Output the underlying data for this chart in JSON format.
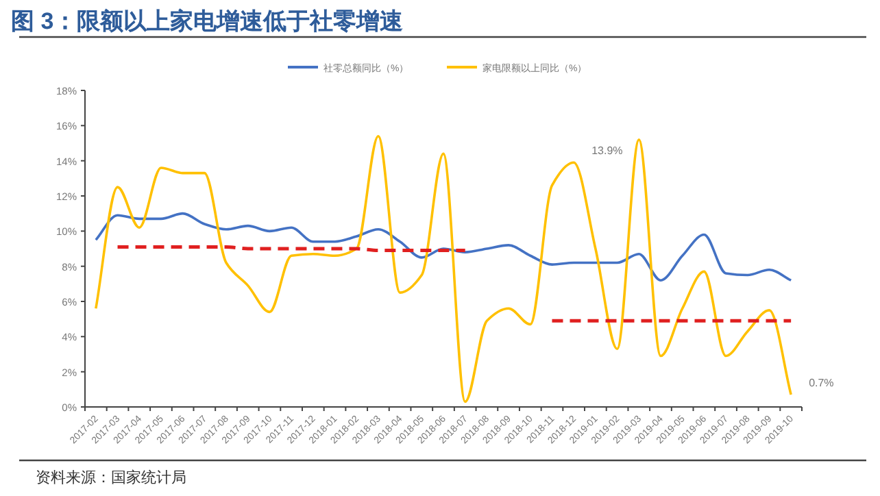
{
  "chart_data": {
    "type": "line",
    "title": "图 3：限额以上家电增速低于社零增速",
    "categories": [
      "2017-02",
      "2017-03",
      "2017-04",
      "2017-05",
      "2017-06",
      "2017-07",
      "2017-08",
      "2017-09",
      "2017-10",
      "2017-11",
      "2017-12",
      "2018-01",
      "2018-02",
      "2018-03",
      "2018-04",
      "2018-05",
      "2018-06",
      "2018-07",
      "2018-08",
      "2018-09",
      "2018-10",
      "2018-11",
      "2018-12",
      "2019-01",
      "2019-02",
      "2019-03",
      "2019-04",
      "2019-05",
      "2019-06",
      "2019-07",
      "2019-08",
      "2019-09",
      "2019-10"
    ],
    "series": [
      {
        "name": "社零总额同比（%）",
        "color": "#4472c4",
        "values": [
          9.5,
          10.9,
          10.7,
          10.7,
          11.0,
          10.4,
          10.1,
          10.3,
          10.0,
          10.2,
          9.4,
          9.4,
          9.7,
          10.1,
          9.4,
          8.5,
          9.0,
          8.8,
          9.0,
          9.2,
          8.6,
          8.1,
          8.2,
          8.2,
          8.2,
          8.7,
          7.2,
          8.6,
          9.8,
          7.6,
          7.5,
          7.8,
          7.2
        ]
      },
      {
        "name": "家电限额以上同比（%）",
        "color": "#ffc000",
        "values": [
          5.6,
          12.5,
          10.2,
          13.6,
          13.3,
          13.3,
          8.2,
          6.9,
          5.4,
          8.6,
          8.7,
          8.6,
          9.0,
          15.4,
          6.5,
          7.5,
          14.4,
          0.3,
          4.9,
          5.6,
          4.7,
          12.6,
          13.9,
          9.0,
          3.3,
          15.2,
          2.9,
          5.6,
          7.7,
          2.9,
          4.3,
          5.5,
          0.7
        ]
      },
      {
        "color": "#e02020",
        "line_style": "dashed",
        "values": [
          null,
          9.1,
          9.1,
          9.1,
          9.1,
          9.1,
          9.1,
          9.0,
          9.0,
          9.0,
          9.0,
          9.0,
          9.0,
          8.9,
          8.9,
          8.9,
          8.9,
          8.9,
          null,
          null,
          null,
          null,
          null,
          null,
          null,
          null,
          null,
          null,
          null,
          null,
          null,
          null,
          null
        ]
      },
      {
        "color": "#e02020",
        "line_style": "dashed",
        "values": [
          null,
          null,
          null,
          null,
          null,
          null,
          null,
          null,
          null,
          null,
          null,
          null,
          null,
          null,
          null,
          null,
          null,
          null,
          null,
          null,
          null,
          4.9,
          4.9,
          4.9,
          4.9,
          4.9,
          4.9,
          4.9,
          4.9,
          4.9,
          4.9,
          4.9,
          4.9
        ]
      }
    ],
    "ylim": [
      0,
      18
    ],
    "yticks": [
      {
        "value": 0,
        "label": "0%"
      },
      {
        "value": 2,
        "label": "2%"
      },
      {
        "value": 4,
        "label": "4%"
      },
      {
        "value": 6,
        "label": "6%"
      },
      {
        "value": 8,
        "label": "8%"
      },
      {
        "value": 10,
        "label": "10%"
      },
      {
        "value": 12,
        "label": "12%"
      },
      {
        "value": 14,
        "label": "14%"
      },
      {
        "value": 16,
        "label": "16%"
      },
      {
        "value": 18,
        "label": "18%"
      }
    ],
    "grid": false,
    "legend": "top",
    "annotations": [
      {
        "text": "13.9%",
        "x": "2018-12",
        "y": 13.9
      },
      {
        "text": "0.7%",
        "x": "2019-10",
        "y": 0.7
      },
      "资料来源：国家统计局"
    ]
  }
}
